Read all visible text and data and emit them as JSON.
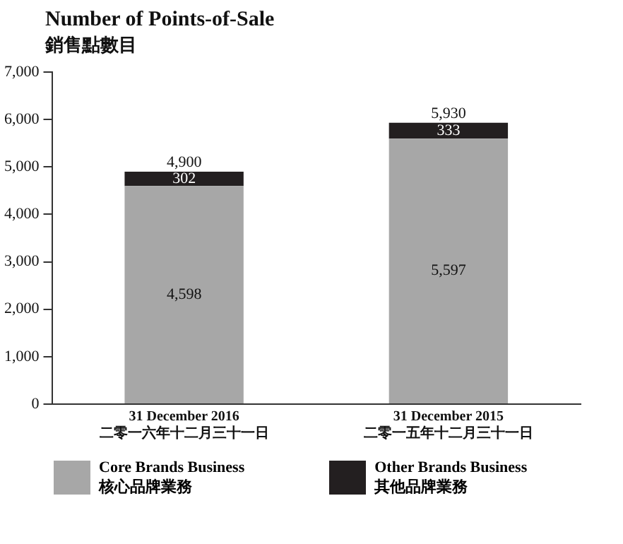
{
  "chart_data": {
    "type": "bar",
    "title": "Number of Points-of-Sale",
    "subtitle": "銷售點數目",
    "categories": [
      "31 December 2016\n二零一六年十二月三十一日",
      "31 December 2015\n二零一五年十二月三十一日"
    ],
    "series": [
      {
        "name": "Core Brands Business\n核心品牌業務",
        "color": "#a7a7a7",
        "values": [
          4598,
          5597
        ],
        "value_labels": [
          "4,598",
          "5,597"
        ]
      },
      {
        "name": "Other Brands Business\n其他品牌業務",
        "color": "#231f20",
        "values": [
          302,
          333
        ],
        "value_labels": [
          "302",
          "333"
        ]
      }
    ],
    "stacked": true,
    "totals": [
      "4,900",
      "5,930"
    ],
    "ylim": [
      0,
      7000
    ],
    "yticks": [
      {
        "value": 0,
        "label": "0"
      },
      {
        "value": 1000,
        "label": "1,000"
      },
      {
        "value": 2000,
        "label": "2,000"
      },
      {
        "value": 3000,
        "label": "3,000"
      },
      {
        "value": 4000,
        "label": "4,000"
      },
      {
        "value": 5000,
        "label": "5,000"
      },
      {
        "value": 6000,
        "label": "6,000"
      },
      {
        "value": 7000,
        "label": "7,000"
      }
    ],
    "grid": false,
    "legend": "bottom"
  }
}
